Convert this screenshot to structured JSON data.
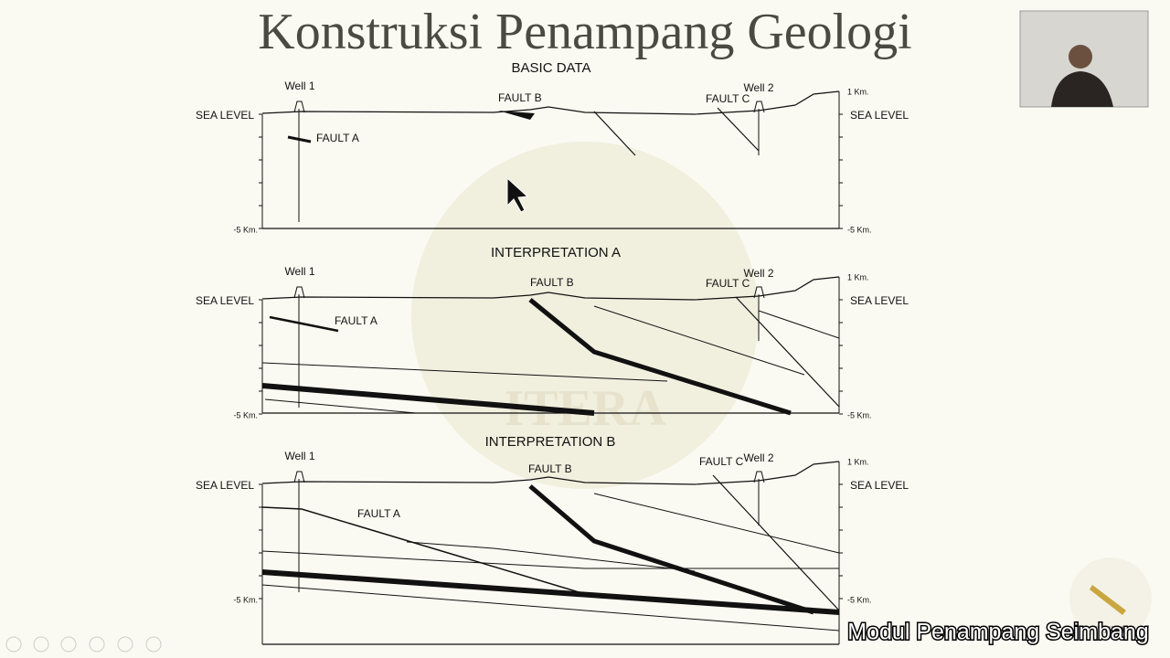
{
  "title": "Konstruksi Penampang Geologi",
  "panels": [
    {
      "heading": "BASIC DATA",
      "well_1": "Well 1",
      "well_2": "Well 2",
      "fault_a": "FAULT A",
      "fault_b": "FAULT B",
      "fault_c": "FAULT C",
      "sea_level_left": "SEA LEVEL",
      "sea_level_right": "SEA LEVEL",
      "top_scale": "1 Km.",
      "bottom_left": "-5 Km.",
      "bottom_right": "-5 Km."
    },
    {
      "heading": "INTERPRETATION A",
      "well_1": "Well 1",
      "well_2": "Well 2",
      "fault_a": "FAULT A",
      "fault_b": "FAULT B",
      "fault_c": "FAULT C",
      "sea_level_left": "SEA LEVEL",
      "sea_level_right": "SEA LEVEL",
      "top_scale": "1 Km.",
      "bottom_left": "-5 Km.",
      "bottom_right": "-5 Km."
    },
    {
      "heading": "INTERPRETATION B",
      "well_1": "Well 1",
      "well_2": "Well 2",
      "fault_a": "FAULT A",
      "fault_b": "FAULT B",
      "fault_c": "FAULT C",
      "sea_level_left": "SEA LEVEL",
      "sea_level_right": "SEA LEVEL",
      "top_scale": "1 Km.",
      "bottom_left": "-5 Km.",
      "bottom_right": "-5 Km."
    }
  ],
  "watermark": "ITERA",
  "logo_text": "ITERA",
  "caption": "Modul Penampang Seimbang"
}
